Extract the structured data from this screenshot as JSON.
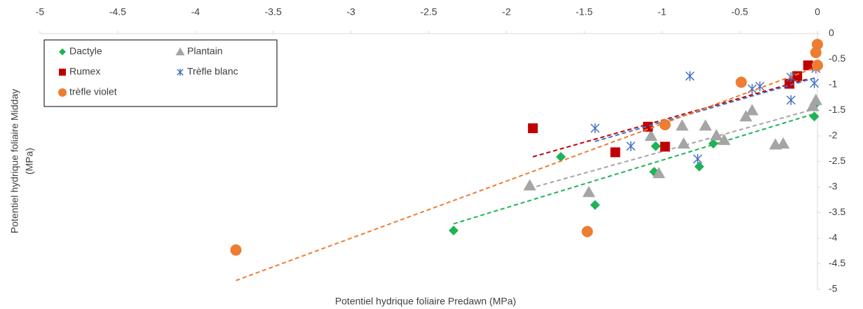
{
  "chart_data": {
    "type": "scatter",
    "x_label": "Potentiel hydrique foliaire Predawn (MPa)",
    "y_label": [
      "Potentiel hydrique foliaire Midday",
      "(MPa)"
    ],
    "xlim": [
      -5,
      0
    ],
    "ylim": [
      -5,
      0
    ],
    "xticks": [
      -5,
      -4.5,
      -4,
      -3.5,
      -3,
      -2.5,
      -2,
      -1.5,
      -1,
      -0.5,
      0
    ],
    "yticks": [
      0,
      -0.5,
      -1,
      -1.5,
      -2,
      -2.5,
      -3,
      -3.5,
      -4,
      -4.5,
      -5
    ],
    "trendline": true,
    "legend": "top-left",
    "series": [
      {
        "name": "Dactyle",
        "color": "#1fb356",
        "marker": "diamond",
        "x": [
          -2.34,
          -1.65,
          -1.43,
          -1.05,
          -1.04,
          -0.76,
          -0.67,
          -0.02,
          -0.01
        ],
        "y": [
          -3.85,
          -2.41,
          -3.35,
          -2.7,
          -2.2,
          -2.6,
          -2.15,
          -1.62,
          -1.37
        ]
      },
      {
        "name": "Plantain",
        "color": "#a5a5a5",
        "marker": "triangle",
        "x": [
          -1.85,
          -1.47,
          -1.07,
          -1.02,
          -0.87,
          -0.86,
          -0.72,
          -0.65,
          -0.6,
          -0.46,
          -0.42,
          -0.27,
          -0.22,
          -0.03,
          -0.01
        ],
        "y": [
          -2.97,
          -3.1,
          -2.0,
          -2.73,
          -1.8,
          -2.15,
          -1.8,
          -1.99,
          -2.08,
          -1.62,
          -1.5,
          -2.17,
          -2.15,
          -1.42,
          -1.3
        ]
      },
      {
        "name": "Rumex",
        "color": "#c00000",
        "marker": "square",
        "x": [
          -1.83,
          -1.3,
          -1.09,
          -0.98,
          -0.18,
          -0.13,
          -0.06
        ],
        "y": [
          -1.85,
          -2.32,
          -1.82,
          -2.21,
          -0.98,
          -0.83,
          -0.62
        ]
      },
      {
        "name": "Trèfle blanc",
        "color": "#4472c4",
        "marker": "asterisk",
        "x": [
          -1.43,
          -1.2,
          -0.82,
          -0.77,
          -0.42,
          -0.37,
          -0.17,
          -0.17,
          -0.02,
          -0.01
        ],
        "y": [
          -1.85,
          -2.2,
          -0.83,
          -2.45,
          -1.08,
          -1.03,
          -1.3,
          -0.85,
          -0.97,
          -0.68
        ]
      },
      {
        "name": "trèfle violet",
        "color": "#ed7d31",
        "marker": "circle",
        "x": [
          -3.74,
          -1.48,
          -0.98,
          -0.49,
          -0.01,
          0,
          0
        ],
        "y": [
          -4.23,
          -3.87,
          -1.78,
          -0.95,
          -0.37,
          -0.21,
          -0.62
        ]
      }
    ]
  }
}
